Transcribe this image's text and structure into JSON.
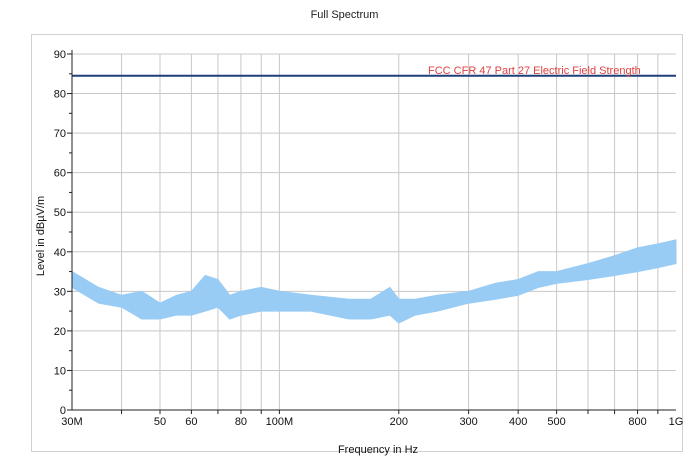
{
  "chart_data": {
    "type": "line",
    "title": "Full Spectrum",
    "xlabel": "Frequency in Hz",
    "ylabel": "Level in dBµV/m",
    "x_scale": "log",
    "xlim": [
      30000000,
      1000000000
    ],
    "ylim": [
      0,
      90
    ],
    "grid": true,
    "x_ticks": [
      {
        "value": 30000000,
        "label": "30M"
      },
      {
        "value": 50000000,
        "label": "50"
      },
      {
        "value": 60000000,
        "label": "60"
      },
      {
        "value": 80000000,
        "label": "80"
      },
      {
        "value": 100000000,
        "label": "100M"
      },
      {
        "value": 200000000,
        "label": "200"
      },
      {
        "value": 300000000,
        "label": "300"
      },
      {
        "value": 400000000,
        "label": "400"
      },
      {
        "value": 500000000,
        "label": "500"
      },
      {
        "value": 800000000,
        "label": "800"
      },
      {
        "value": 1000000000,
        "label": "1G"
      }
    ],
    "y_ticks": [
      0,
      10,
      20,
      30,
      40,
      50,
      60,
      70,
      80,
      90
    ],
    "limit_line": {
      "name": "FCC CFR 47 Part 27 Electric Field Strength",
      "value": 84.5,
      "color": "#1f3f7a",
      "label_color": "#e04040"
    },
    "series": [
      {
        "color": "#99ccf5",
        "x": [
          30000000,
          35000000,
          40000000,
          45000000,
          50000000,
          55000000,
          60000000,
          65000000,
          70000000,
          75000000,
          80000000,
          90000000,
          100000000,
          120000000,
          150000000,
          170000000,
          190000000,
          200000000,
          220000000,
          250000000,
          300000000,
          350000000,
          400000000,
          450000000,
          500000000,
          600000000,
          700000000,
          800000000,
          900000000,
          1000000000
        ],
        "low": [
          31,
          27,
          26,
          23,
          23,
          24,
          24,
          25,
          26,
          23,
          24,
          25,
          25,
          25,
          23,
          23,
          24,
          22,
          24,
          25,
          27,
          28,
          29,
          31,
          32,
          33,
          34,
          35,
          36,
          37
        ],
        "high": [
          35,
          31,
          29,
          30,
          27,
          29,
          30,
          34,
          33,
          29,
          30,
          31,
          30,
          29,
          28,
          28,
          31,
          28,
          28,
          29,
          30,
          32,
          33,
          35,
          35,
          37,
          39,
          41,
          42,
          43
        ]
      }
    ]
  }
}
